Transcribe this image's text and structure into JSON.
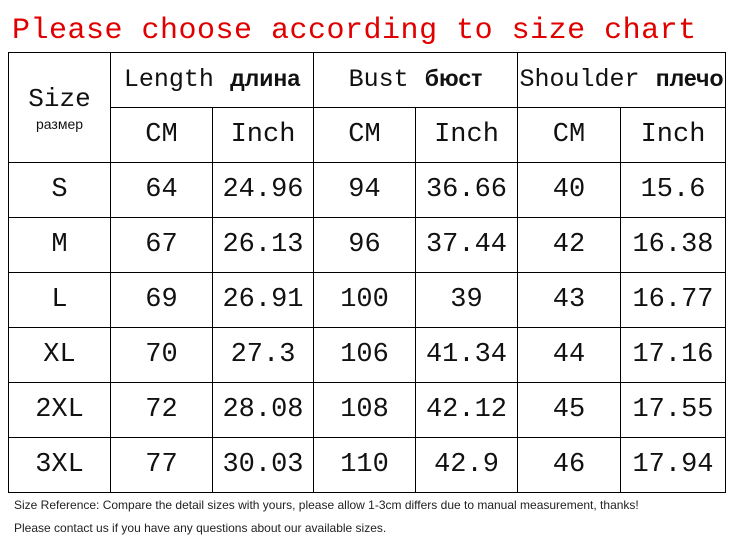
{
  "title": "Please choose according to size chart",
  "table": {
    "header": {
      "size": "Size",
      "size_ru": "размер",
      "groups": [
        {
          "en": "Length",
          "ru": "длина"
        },
        {
          "en": "Bust",
          "ru": "бюст"
        },
        {
          "en": "Shoulder",
          "ru": "плечо"
        }
      ],
      "units": [
        "CM",
        "Inch",
        "CM",
        "Inch",
        "CM",
        "Inch"
      ]
    },
    "rows": [
      [
        "S",
        "64",
        "24.96",
        "94",
        "36.66",
        "40",
        "15.6"
      ],
      [
        "M",
        "67",
        "26.13",
        "96",
        "37.44",
        "42",
        "16.38"
      ],
      [
        "L",
        "69",
        "26.91",
        "100",
        "39",
        "43",
        "16.77"
      ],
      [
        "XL",
        "70",
        "27.3",
        "106",
        "41.34",
        "44",
        "17.16"
      ],
      [
        "2XL",
        "72",
        "28.08",
        "108",
        "42.12",
        "45",
        "17.55"
      ],
      [
        "3XL",
        "77",
        "30.03",
        "110",
        "42.9",
        "46",
        "17.94"
      ]
    ]
  },
  "notes": [
    "Size Reference: Compare the detail sizes with yours, please allow 1-3cm differs due to manual measurement, thanks!",
    "Please contact us if you have any questions about our available sizes."
  ]
}
